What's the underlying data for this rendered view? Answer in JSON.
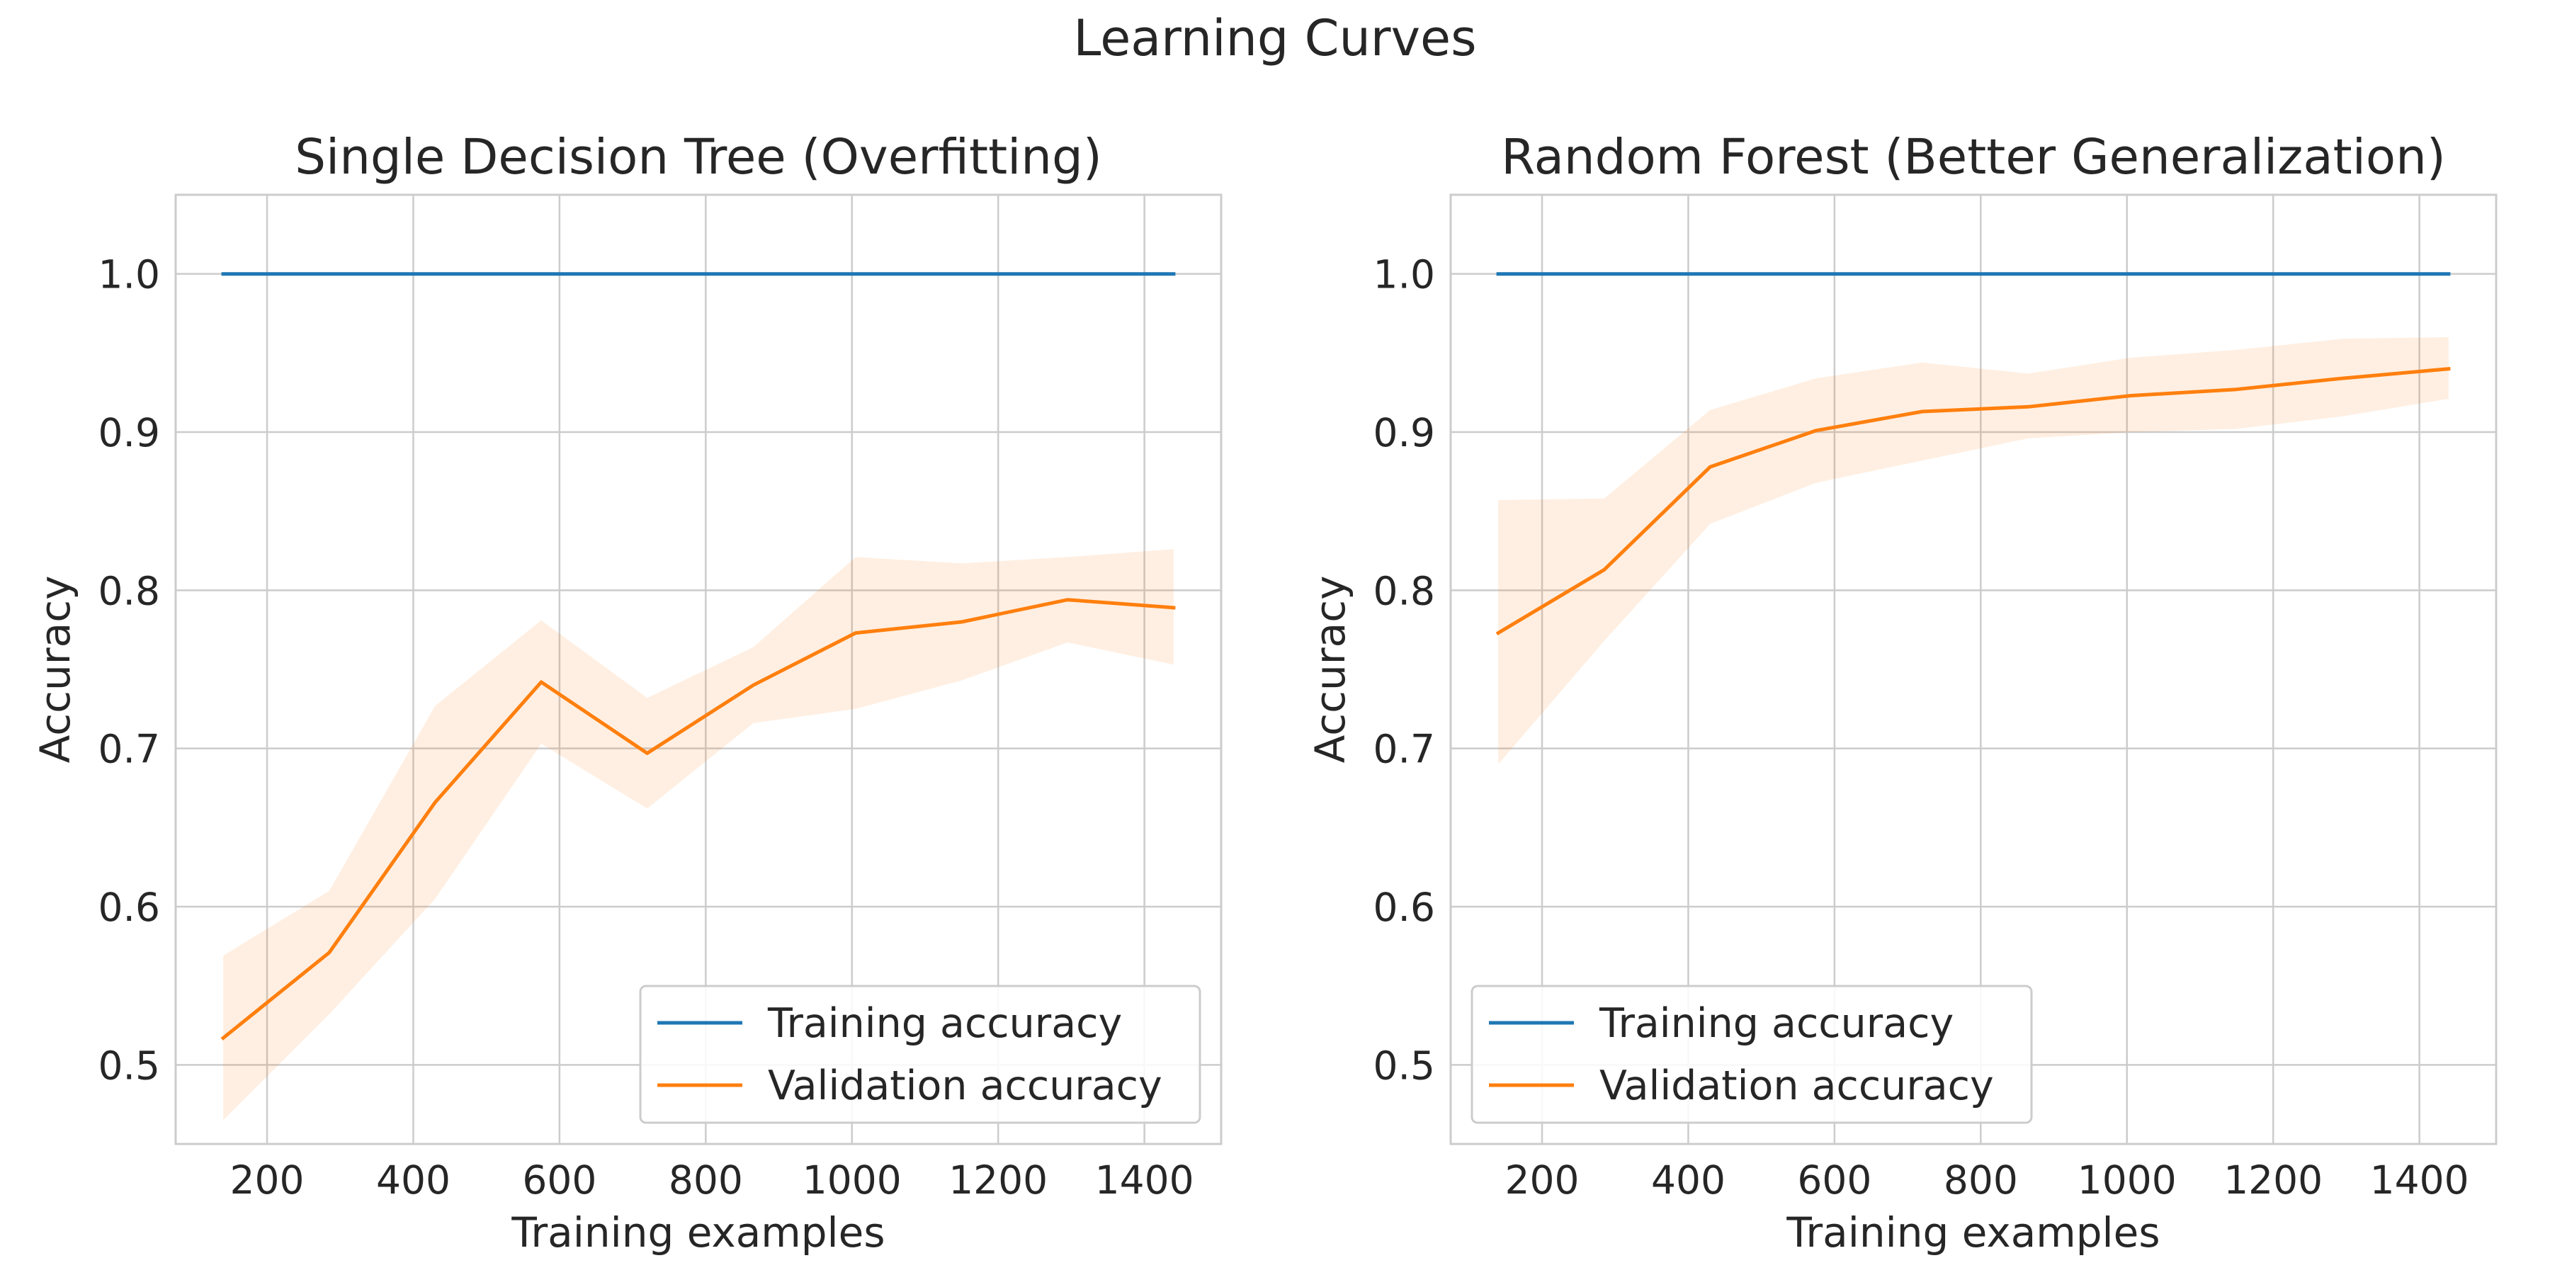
{
  "figure": {
    "suptitle": "Learning Curves"
  },
  "colors": {
    "training": "#1f77b4",
    "validation": "#ff7f0e",
    "validation_band": "#ff7f0e",
    "grid": "#cccccc",
    "axes_frame": "#cccccc",
    "text": "#262626",
    "legend_frame": "#cccccc"
  },
  "chart_data": [
    {
      "type": "line",
      "title": "Single Decision Tree (Overfitting)",
      "xlabel": "Training examples",
      "ylabel": "Accuracy",
      "xlim": [
        75,
        1505
      ],
      "ylim": [
        0.45,
        1.05
      ],
      "xticks": [
        200,
        400,
        600,
        800,
        1000,
        1200,
        1400
      ],
      "yticks": [
        0.5,
        0.6,
        0.7,
        0.8,
        0.9,
        1.0
      ],
      "xtick_labels": [
        "200",
        "400",
        "600",
        "800",
        "1000",
        "1200",
        "1400"
      ],
      "ytick_labels": [
        "0.5",
        "0.6",
        "0.7",
        "0.8",
        "0.9",
        "1.0"
      ],
      "grid": true,
      "legend": {
        "position": "lower-right",
        "entries": [
          "Training accuracy",
          "Validation accuracy"
        ]
      },
      "x": [
        140,
        285,
        430,
        575,
        720,
        865,
        1005,
        1150,
        1295,
        1440
      ],
      "series": [
        {
          "name": "Training accuracy",
          "color_key": "training",
          "values": [
            1.0,
            1.0,
            1.0,
            1.0,
            1.0,
            1.0,
            1.0,
            1.0,
            1.0,
            1.0
          ]
        },
        {
          "name": "Validation accuracy",
          "color_key": "validation",
          "values": [
            0.517,
            0.571,
            0.666,
            0.742,
            0.697,
            0.74,
            0.773,
            0.78,
            0.794,
            0.789
          ],
          "band_lower": [
            0.465,
            0.532,
            0.605,
            0.703,
            0.662,
            0.716,
            0.725,
            0.743,
            0.767,
            0.753
          ],
          "band_upper": [
            0.569,
            0.61,
            0.727,
            0.781,
            0.732,
            0.764,
            0.821,
            0.817,
            0.821,
            0.826
          ]
        }
      ]
    },
    {
      "type": "line",
      "title": "Random Forest (Better Generalization)",
      "xlabel": "Training examples",
      "ylabel": "Accuracy",
      "xlim": [
        75,
        1505
      ],
      "ylim": [
        0.45,
        1.05
      ],
      "xticks": [
        200,
        400,
        600,
        800,
        1000,
        1200,
        1400
      ],
      "yticks": [
        0.5,
        0.6,
        0.7,
        0.8,
        0.9,
        1.0
      ],
      "xtick_labels": [
        "200",
        "400",
        "600",
        "800",
        "1000",
        "1200",
        "1400"
      ],
      "ytick_labels": [
        "0.5",
        "0.6",
        "0.7",
        "0.8",
        "0.9",
        "1.0"
      ],
      "grid": true,
      "legend": {
        "position": "lower-left",
        "entries": [
          "Training accuracy",
          "Validation accuracy"
        ]
      },
      "x": [
        140,
        285,
        430,
        575,
        720,
        865,
        1005,
        1150,
        1295,
        1440
      ],
      "series": [
        {
          "name": "Training accuracy",
          "color_key": "training",
          "values": [
            1.0,
            1.0,
            1.0,
            1.0,
            1.0,
            1.0,
            1.0,
            1.0,
            1.0,
            1.0
          ]
        },
        {
          "name": "Validation accuracy",
          "color_key": "validation",
          "values": [
            0.773,
            0.813,
            0.878,
            0.901,
            0.913,
            0.916,
            0.923,
            0.927,
            0.934,
            0.94
          ],
          "band_lower": [
            0.69,
            0.768,
            0.842,
            0.868,
            0.882,
            0.896,
            0.9,
            0.902,
            0.91,
            0.921
          ],
          "band_upper": [
            0.857,
            0.858,
            0.914,
            0.934,
            0.944,
            0.937,
            0.947,
            0.952,
            0.959,
            0.96
          ]
        }
      ]
    }
  ]
}
